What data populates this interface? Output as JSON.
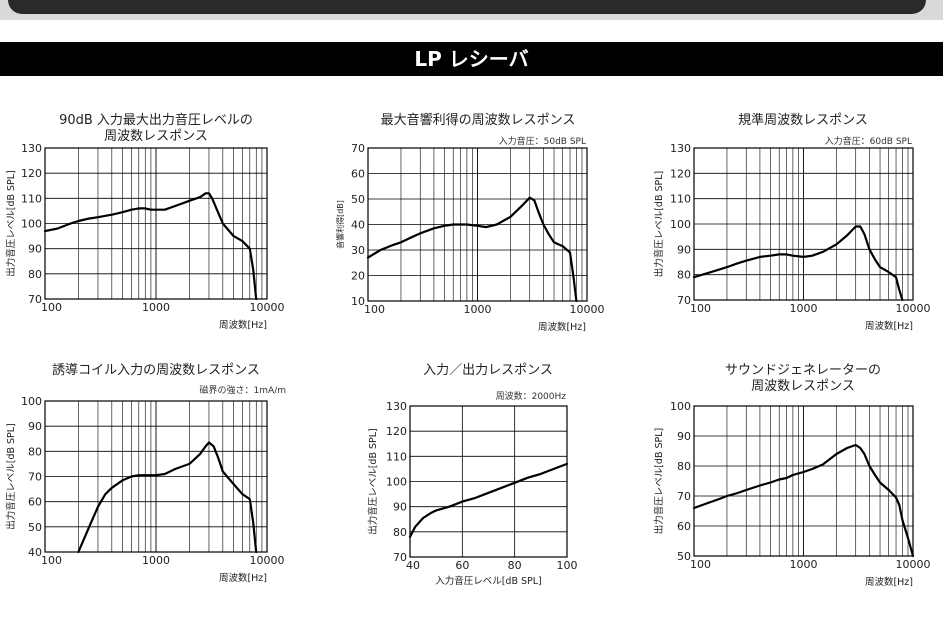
{
  "page": {
    "title": "LP レシーバ"
  },
  "chart_data": [
    {
      "type": "line",
      "title": [
        "90dB 入力最大出力音圧レベルの",
        "周波数レスポンス"
      ],
      "subtitle": "",
      "xlabel": "周波数[Hz]",
      "ylabel": "出力音圧レベル[dB SPL]",
      "xscale": "log",
      "xlim": [
        100,
        10000
      ],
      "ylim": [
        70,
        130
      ],
      "xticks": [
        100,
        1000,
        10000
      ],
      "xtick_labels": [
        "100",
        "1000",
        "10000"
      ],
      "yticks": [
        70,
        80,
        90,
        100,
        110,
        120,
        130
      ],
      "ytick_labels": [
        "70",
        "80",
        "90",
        "100",
        "110",
        "120",
        "130"
      ],
      "grid": true,
      "x": [
        100,
        130,
        170,
        200,
        250,
        300,
        400,
        500,
        600,
        700,
        800,
        900,
        1000,
        1200,
        1500,
        2000,
        2500,
        2800,
        3000,
        3200,
        3500,
        4000,
        5000,
        6000,
        7000,
        7500,
        8000
      ],
      "y": [
        97,
        98,
        100,
        101,
        102,
        102.5,
        103.5,
        104.5,
        105.5,
        106,
        106,
        105.5,
        105.5,
        105.5,
        107,
        109,
        110.5,
        112,
        112,
        110,
        106,
        100,
        95,
        93,
        90,
        82,
        70
      ]
    },
    {
      "type": "line",
      "title": [
        "最大音響利得の周波数レスポンス"
      ],
      "subtitle": "入力音圧：50dB SPL",
      "xlabel": "周波数[Hz]",
      "ylabel": "音響利得[dB]",
      "xscale": "log",
      "xlim": [
        100,
        10000
      ],
      "ylim": [
        10,
        70
      ],
      "xticks": [
        100,
        1000,
        10000
      ],
      "xtick_labels": [
        "100",
        "1000",
        "10000"
      ],
      "yticks": [
        10,
        20,
        30,
        40,
        50,
        60,
        70
      ],
      "ytick_labels": [
        "10",
        "20",
        "30",
        "40",
        "50",
        "60",
        "70"
      ],
      "grid": true,
      "x": [
        100,
        130,
        170,
        200,
        250,
        300,
        400,
        500,
        600,
        700,
        800,
        1000,
        1200,
        1500,
        2000,
        2500,
        3000,
        3300,
        3600,
        4000,
        4500,
        5000,
        6000,
        7000,
        7500,
        8000
      ],
      "y": [
        27,
        30,
        32,
        33,
        35,
        36.5,
        38.5,
        39.5,
        40,
        40,
        40,
        39.5,
        39,
        40,
        43,
        47,
        50.5,
        49.5,
        45,
        40,
        36,
        33,
        31.5,
        29,
        20,
        10
      ]
    },
    {
      "type": "line",
      "title": [
        "規準周波数レスポンス"
      ],
      "subtitle": "入力音圧：60dB SPL",
      "xlabel": "周波数[Hz]",
      "ylabel": "出力音圧レベル[dB SPL]",
      "xscale": "log",
      "xlim": [
        100,
        10000
      ],
      "ylim": [
        70,
        130
      ],
      "xticks": [
        100,
        1000,
        10000
      ],
      "xtick_labels": [
        "100",
        "1000",
        "10000"
      ],
      "yticks": [
        70,
        80,
        90,
        100,
        110,
        120,
        130
      ],
      "ytick_labels": [
        "70",
        "80",
        "90",
        "100",
        "110",
        "120",
        "130"
      ],
      "grid": true,
      "x": [
        100,
        130,
        170,
        200,
        250,
        300,
        400,
        500,
        600,
        700,
        800,
        1000,
        1200,
        1500,
        2000,
        2500,
        3000,
        3300,
        3600,
        4000,
        4500,
        5000,
        6000,
        7000,
        7500,
        8000
      ],
      "y": [
        79,
        80.5,
        82,
        83,
        84.5,
        85.5,
        87,
        87.5,
        88,
        88,
        87.5,
        87,
        87.5,
        89,
        92,
        95.5,
        99,
        99,
        96,
        90,
        86,
        83,
        81,
        79,
        74,
        70
      ]
    },
    {
      "type": "line",
      "title": [
        "誘導コイル入力の周波数レスポンス"
      ],
      "subtitle": "磁界の強さ：1mA/m",
      "xlabel": "周波数[Hz]",
      "ylabel": "出力音圧レベル[dB SPL]",
      "xscale": "log",
      "xlim": [
        100,
        10000
      ],
      "ylim": [
        40,
        100
      ],
      "xticks": [
        100,
        1000,
        10000
      ],
      "xtick_labels": [
        "100",
        "1000",
        "10000"
      ],
      "yticks": [
        40,
        50,
        60,
        70,
        80,
        90,
        100
      ],
      "ytick_labels": [
        "40",
        "50",
        "60",
        "70",
        "80",
        "90",
        "100"
      ],
      "grid": true,
      "x": [
        200,
        250,
        300,
        350,
        400,
        500,
        600,
        700,
        800,
        1000,
        1200,
        1500,
        2000,
        2500,
        2800,
        3000,
        3300,
        3600,
        4000,
        5000,
        6000,
        7000,
        7500,
        8000
      ],
      "y": [
        40,
        50,
        58,
        63,
        65.5,
        68.5,
        70,
        70.5,
        70.5,
        70.5,
        71,
        73,
        75,
        79,
        82,
        83.5,
        82,
        78,
        72,
        67,
        63,
        61,
        52,
        40
      ]
    },
    {
      "type": "line",
      "title": [
        "入力／出力レスポンス"
      ],
      "subtitle": "周波数：2000Hz",
      "xlabel": "入力音圧レベル[dB SPL]",
      "ylabel": "出力音圧レベル[dB SPL]",
      "xscale": "linear",
      "xlim": [
        40,
        100
      ],
      "ylim": [
        70,
        130
      ],
      "xticks": [
        40,
        60,
        80,
        100
      ],
      "xtick_labels": [
        "40",
        "60",
        "80",
        "100"
      ],
      "yticks": [
        70,
        80,
        90,
        100,
        110,
        120,
        130
      ],
      "ytick_labels": [
        "70",
        "80",
        "90",
        "100",
        "110",
        "120",
        "130"
      ],
      "grid": true,
      "x": [
        40,
        42,
        45,
        48,
        50,
        55,
        60,
        65,
        70,
        75,
        80,
        85,
        90,
        95,
        100
      ],
      "y": [
        78,
        82,
        85.5,
        87.5,
        88.5,
        90,
        92,
        93.5,
        95.5,
        97.5,
        99.5,
        101.5,
        103,
        105,
        107
      ]
    },
    {
      "type": "line",
      "title": [
        "サウンドジェネレーターの",
        "周波数レスポンス"
      ],
      "subtitle": "",
      "xlabel": "周波数[Hz]",
      "ylabel": "出力音圧レベル[dB SPL]",
      "xscale": "log",
      "xlim": [
        100,
        10000
      ],
      "ylim": [
        50,
        100
      ],
      "xticks": [
        100,
        1000,
        10000
      ],
      "xtick_labels": [
        "100",
        "1000",
        "10000"
      ],
      "yticks": [
        50,
        60,
        70,
        80,
        90,
        100
      ],
      "ytick_labels": [
        "50",
        "60",
        "70",
        "80",
        "90",
        "100"
      ],
      "grid": true,
      "x": [
        100,
        130,
        170,
        200,
        250,
        300,
        400,
        500,
        600,
        700,
        800,
        1000,
        1200,
        1500,
        2000,
        2500,
        3000,
        3300,
        3600,
        4000,
        4500,
        5000,
        6000,
        7000,
        7500,
        8000,
        9000,
        10000
      ],
      "y": [
        66,
        67.5,
        69,
        70,
        71,
        72,
        73.5,
        74.5,
        75.5,
        76,
        77,
        78,
        79,
        80.5,
        84,
        86,
        87,
        86,
        84,
        80,
        77,
        74.5,
        72,
        69.5,
        67,
        62,
        56,
        50
      ]
    }
  ]
}
